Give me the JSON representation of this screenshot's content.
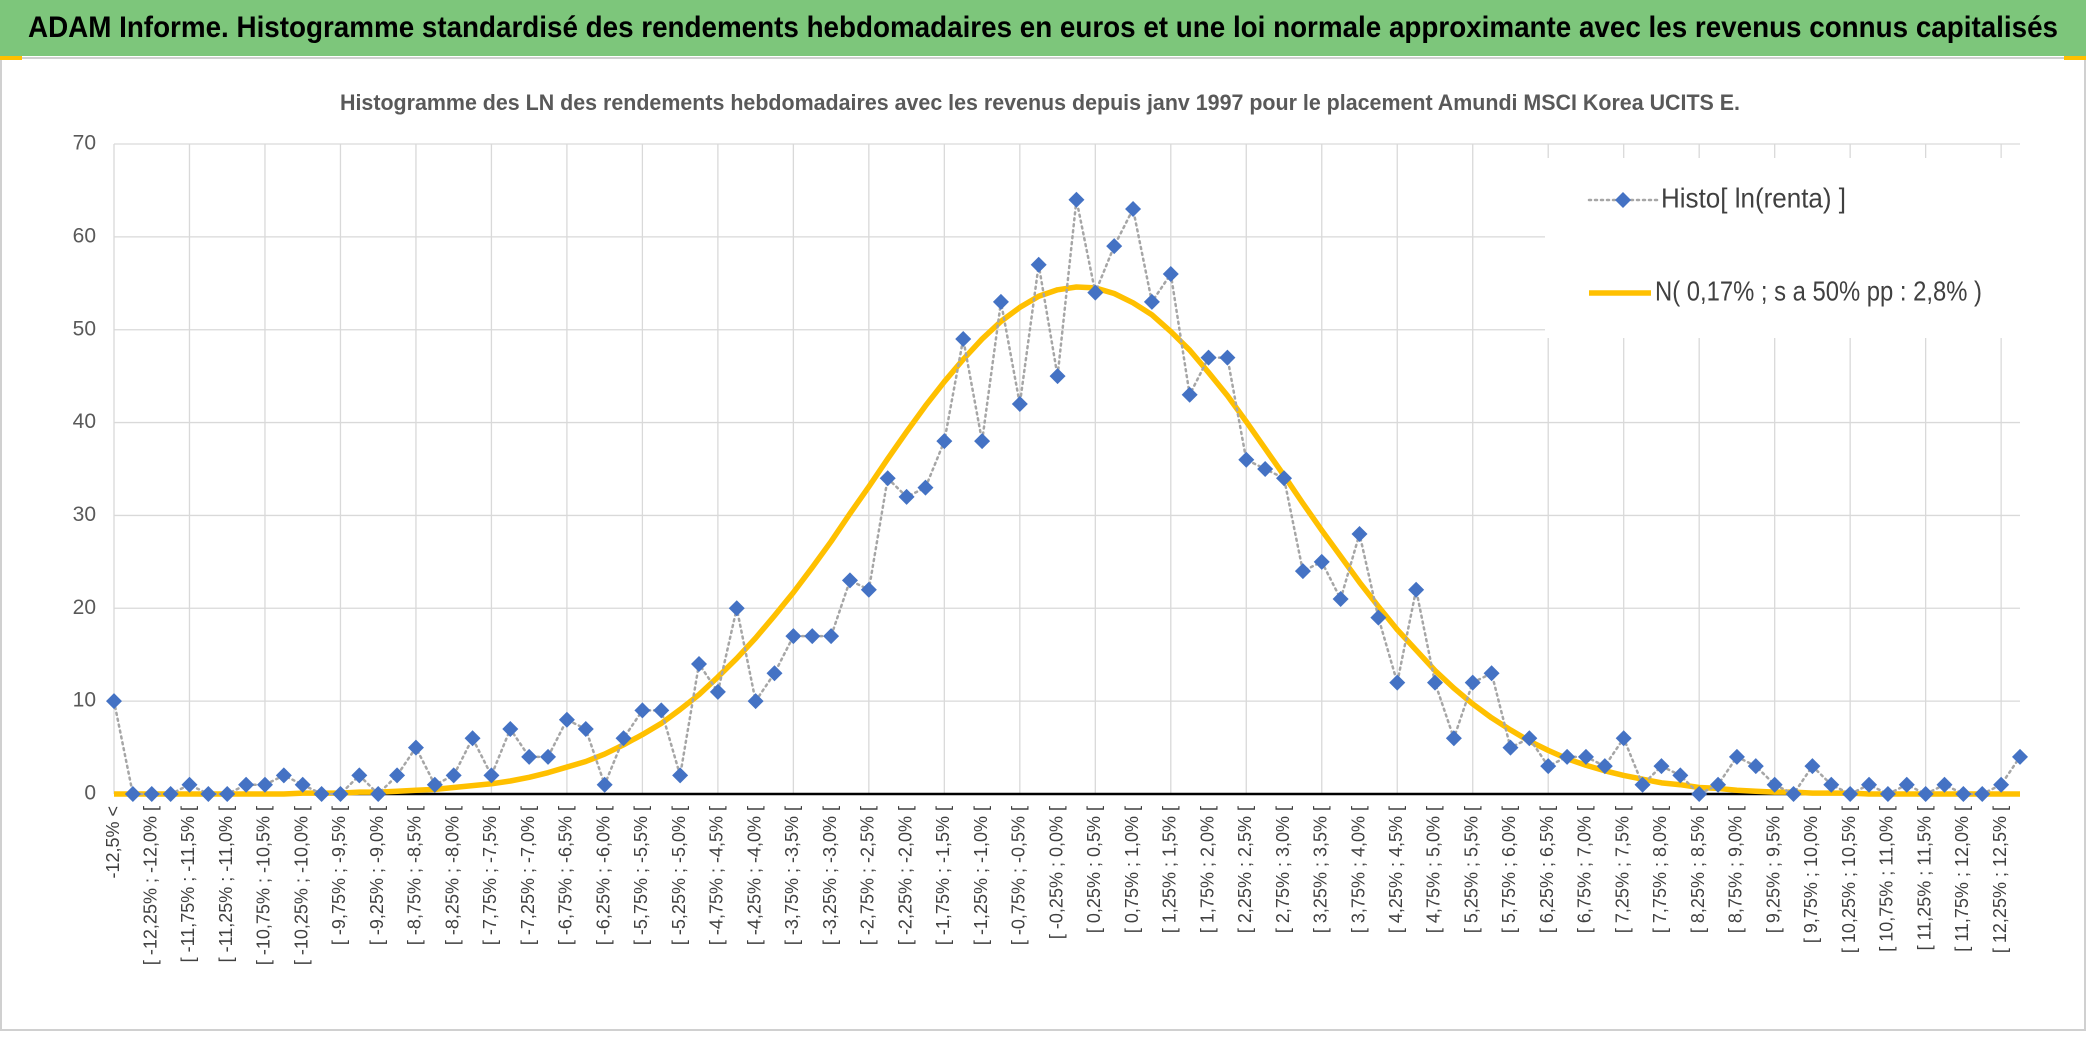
{
  "chart_data": {
    "type": "line",
    "title": "ADAM Informe. Histogramme standardisé des rendements hebdomadaires en euros et une loi normale approximante avec les revenus connus capitalisés",
    "subtitle": "Histogramme des LN des rendements hebdomadaires avec les revenus depuis janv 1997 pour le placement Amundi MSCI Korea UCITS E.",
    "categories": [
      "-12,5% <",
      null,
      "[ -12,25% ; -12,0% [",
      null,
      "[ -11,75% ; -11,5% [",
      null,
      "[ -11,25% ; -11,0% [",
      null,
      "[ -10,75% ; -10,5% [",
      null,
      "[ -10,25% ; -10,0% [",
      null,
      "[ -9,75% ; -9,5% [",
      null,
      "[ -9,25% ; -9,0% [",
      null,
      "[ -8,75% ; -8,5% [",
      null,
      "[ -8,25% ; -8,0% [",
      null,
      "[ -7,75% ; -7,5% [",
      null,
      "[ -7,25% ; -7,0% [",
      null,
      "[ -6,75% ; -6,5% [",
      null,
      "[ -6,25% ; -6,0% [",
      null,
      "[ -5,75% ; -5,5% [",
      null,
      "[ -5,25% ; -5,0% [",
      null,
      "[ -4,75% ; -4,5% [",
      null,
      "[ -4,25% ; -4,0% [",
      null,
      "[ -3,75% ; -3,5% [",
      null,
      "[ -3,25% ; -3,0% [",
      null,
      "[ -2,75% ; -2,5% [",
      null,
      "[ -2,25% ; -2,0% [",
      null,
      "[ -1,75% ; -1,5% [",
      null,
      "[ -1,25% ; -1,0% [",
      null,
      "[ -0,75% ; -0,5% [",
      null,
      "[ -0,25% ; 0,0% [",
      null,
      "[ 0,25% ; 0,5% [",
      null,
      "[ 0,75% ; 1,0% [",
      null,
      "[ 1,25% ; 1,5% [",
      null,
      "[ 1,75% ; 2,0% [",
      null,
      "[ 2,25% ; 2,5% [",
      null,
      "[ 2,75% ; 3,0% [",
      null,
      "[ 3,25% ; 3,5% [",
      null,
      "[ 3,75% ; 4,0% [",
      null,
      "[ 4,25% ; 4,5% [",
      null,
      "[ 4,75% ; 5,0% [",
      null,
      "[ 5,25% ; 5,5% [",
      null,
      "[ 5,75% ; 6,0% [",
      null,
      "[ 6,25% ; 6,5% [",
      null,
      "[ 6,75% ; 7,0% [",
      null,
      "[ 7,25% ; 7,5% [",
      null,
      "[ 7,75% ; 8,0% [",
      null,
      "[ 8,25% ; 8,5% [",
      null,
      "[ 8,75% ; 9,0% [",
      null,
      "[ 9,25% ; 9,5% [",
      null,
      "[ 9,75% ; 10,0% [",
      null,
      "[ 10,25% ; 10,5% [",
      null,
      "[ 10,75% ; 11,0% [",
      null,
      "[ 11,25% ; 11,5% [",
      null,
      "[ 11,75% ; 12,0% [",
      null,
      "[ 12,25% ; 12,5% [",
      null
    ],
    "series": [
      {
        "name": "Histo[ ln(renta) ]",
        "color": "#4472c4",
        "line_color": "#a6a6a6",
        "marker": "diamond",
        "values": [
          10,
          0,
          0,
          0,
          1,
          0,
          0,
          1,
          1,
          2,
          1,
          0,
          0,
          2,
          0,
          2,
          5,
          1,
          2,
          6,
          2,
          7,
          4,
          4,
          8,
          7,
          1,
          6,
          9,
          9,
          2,
          14,
          11,
          20,
          10,
          13,
          17,
          17,
          17,
          23,
          22,
          34,
          32,
          33,
          38,
          49,
          38,
          53,
          42,
          57,
          45,
          64,
          54,
          59,
          63,
          53,
          56,
          43,
          47,
          47,
          36,
          35,
          34,
          24,
          25,
          21,
          28,
          19,
          12,
          22,
          12,
          6,
          12,
          13,
          5,
          6,
          3,
          4,
          4,
          3,
          6,
          1,
          3,
          2,
          0,
          1,
          4,
          3,
          1,
          0,
          3,
          1,
          0,
          1,
          0,
          1,
          0,
          1,
          0,
          0,
          1,
          4
        ]
      },
      {
        "name": "N( 0,17% ; s a 50% pp : 2,8% )",
        "color": "#ffc000",
        "values": [
          0,
          0,
          0,
          0,
          0,
          0,
          0,
          0,
          0,
          0,
          0.1,
          0.1,
          0.1,
          0.2,
          0.2,
          0.3,
          0.4,
          0.5,
          0.7,
          0.9,
          1.1,
          1.4,
          1.8,
          2.3,
          2.9,
          3.5,
          4.3,
          5.3,
          6.4,
          7.6,
          9.1,
          10.7,
          12.6,
          14.6,
          16.8,
          19.2,
          21.7,
          24.4,
          27.2,
          30.2,
          33.1,
          36.1,
          39,
          41.8,
          44.4,
          46.8,
          49,
          50.9,
          52.4,
          53.6,
          54.3,
          54.6,
          54.5,
          53.9,
          52.9,
          51.6,
          49.8,
          47.8,
          45.4,
          42.9,
          40.1,
          37.2,
          34.3,
          31.3,
          28.4,
          25.6,
          22.8,
          20.2,
          17.7,
          15.5,
          13.3,
          11.4,
          9.7,
          8.2,
          6.9,
          5.7,
          4.7,
          3.8,
          3.1,
          2.5,
          2,
          1.6,
          1.2,
          1,
          0.7,
          0.6,
          0.4,
          0.3,
          0.2,
          0.2,
          0.1,
          0.1,
          0.1,
          0,
          0,
          0,
          0,
          0,
          0,
          0,
          0,
          0
        ]
      }
    ],
    "ylim": [
      0,
      70
    ],
    "yticks": [
      0,
      10,
      20,
      30,
      40,
      50,
      60,
      70
    ],
    "grid": true,
    "legend": "top-right"
  }
}
